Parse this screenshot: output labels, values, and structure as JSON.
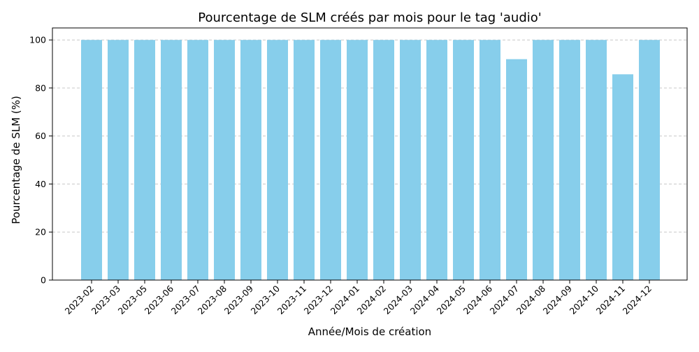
{
  "chart_data": {
    "type": "bar",
    "title": "Pourcentage de SLM créés par mois pour le tag 'audio'",
    "xlabel": "Année/Mois de création",
    "ylabel": "Pourcentage de SLM (%)",
    "categories": [
      "2023-02",
      "2023-03",
      "2023-05",
      "2023-06",
      "2023-07",
      "2023-08",
      "2023-09",
      "2023-10",
      "2023-11",
      "2023-12",
      "2024-01",
      "2024-02",
      "2024-03",
      "2024-04",
      "2024-05",
      "2024-06",
      "2024-07",
      "2024-08",
      "2024-09",
      "2024-10",
      "2024-11",
      "2024-12"
    ],
    "values": [
      100,
      100,
      100,
      100,
      100,
      100,
      100,
      100,
      100,
      100,
      100,
      100,
      100,
      100,
      100,
      100,
      92,
      100,
      100,
      100,
      85.7,
      100
    ],
    "ylim": [
      0,
      105
    ],
    "yticks": [
      0,
      20,
      40,
      60,
      80,
      100
    ],
    "grid": "y-dashed",
    "bar_color": "#87ceeb"
  }
}
